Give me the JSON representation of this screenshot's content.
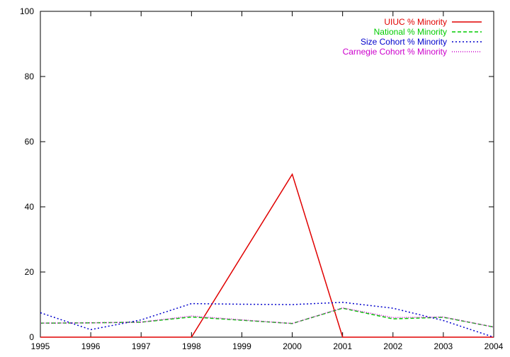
{
  "chart_data": {
    "type": "line",
    "title": "",
    "xlabel": "",
    "ylabel": "",
    "x": [
      1995,
      1996,
      1997,
      1998,
      1999,
      2000,
      2001,
      2002,
      2003,
      2004
    ],
    "xlim": [
      1995,
      2004
    ],
    "ylim": [
      0,
      100
    ],
    "yticks": [
      0,
      20,
      40,
      60,
      80,
      100
    ],
    "grid": false,
    "legend_position": "top-right",
    "series": [
      {
        "name": "UIUC % Minority",
        "color": "#e00000",
        "dash": "solid",
        "values": [
          0,
          0,
          0,
          0,
          25,
          50,
          0,
          0,
          0,
          0
        ]
      },
      {
        "name": "National % Minority",
        "color": "#00cc00",
        "dash": "dashed",
        "values": [
          4.3,
          4.4,
          4.6,
          6.2,
          5.2,
          4.2,
          8.9,
          5.6,
          6.1,
          3.1
        ]
      },
      {
        "name": "Size Cohort % Minority",
        "color": "#0000cc",
        "dash": "dotted",
        "values": [
          7.5,
          2.3,
          5.3,
          10.3,
          10.1,
          10.0,
          10.7,
          8.9,
          5.1,
          0
        ]
      },
      {
        "name": "Carnegie Cohort % Minority",
        "color": "#cc00cc",
        "dash": "finedotted",
        "values": [
          4.3,
          4.4,
          4.6,
          6.5,
          5.3,
          4.2,
          9.0,
          6.0,
          6.2,
          3.1
        ]
      }
    ]
  }
}
